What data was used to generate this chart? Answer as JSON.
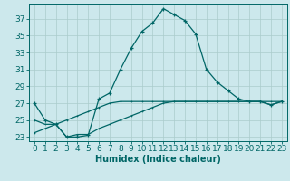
{
  "xlabel": "Humidex (Indice chaleur)",
  "background_color": "#cce8ec",
  "grid_color": "#aacccc",
  "line_color": "#006666",
  "x_values": [
    0,
    1,
    2,
    3,
    4,
    5,
    6,
    7,
    8,
    9,
    10,
    11,
    12,
    13,
    14,
    15,
    16,
    17,
    18,
    19,
    20,
    21,
    22,
    23
  ],
  "y_main": [
    27,
    25,
    24.5,
    23,
    23,
    23.2,
    27.5,
    28.2,
    31,
    33.5,
    35.5,
    36.5,
    38.2,
    37.5,
    36.8,
    35.2,
    31,
    29.5,
    28.5,
    27.5,
    27.2,
    27.2,
    26.8,
    27.2
  ],
  "y_line_upper": [
    25.0,
    24.5,
    24.5,
    23.0,
    23.3,
    23.3,
    24.0,
    24.5,
    25.0,
    25.5,
    26.0,
    26.5,
    27.0,
    27.2,
    27.2,
    27.2,
    27.2,
    27.2,
    27.2,
    27.2,
    27.2,
    27.2,
    26.8,
    27.2
  ],
  "y_line_lower": [
    23.5,
    24.0,
    24.5,
    25.0,
    25.5,
    26.0,
    26.5,
    27.0,
    27.2,
    27.2,
    27.2,
    27.2,
    27.2,
    27.2,
    27.2,
    27.2,
    27.2,
    27.2,
    27.2,
    27.2,
    27.2,
    27.2,
    27.2,
    27.2
  ],
  "ylim": [
    22.5,
    38.8
  ],
  "xlim": [
    -0.5,
    23.5
  ],
  "yticks": [
    23,
    25,
    27,
    29,
    31,
    33,
    35,
    37
  ],
  "xticks": [
    0,
    1,
    2,
    3,
    4,
    5,
    6,
    7,
    8,
    9,
    10,
    11,
    12,
    13,
    14,
    15,
    16,
    17,
    18,
    19,
    20,
    21,
    22,
    23
  ],
  "fontsize": 6.5,
  "linewidth": 0.9
}
